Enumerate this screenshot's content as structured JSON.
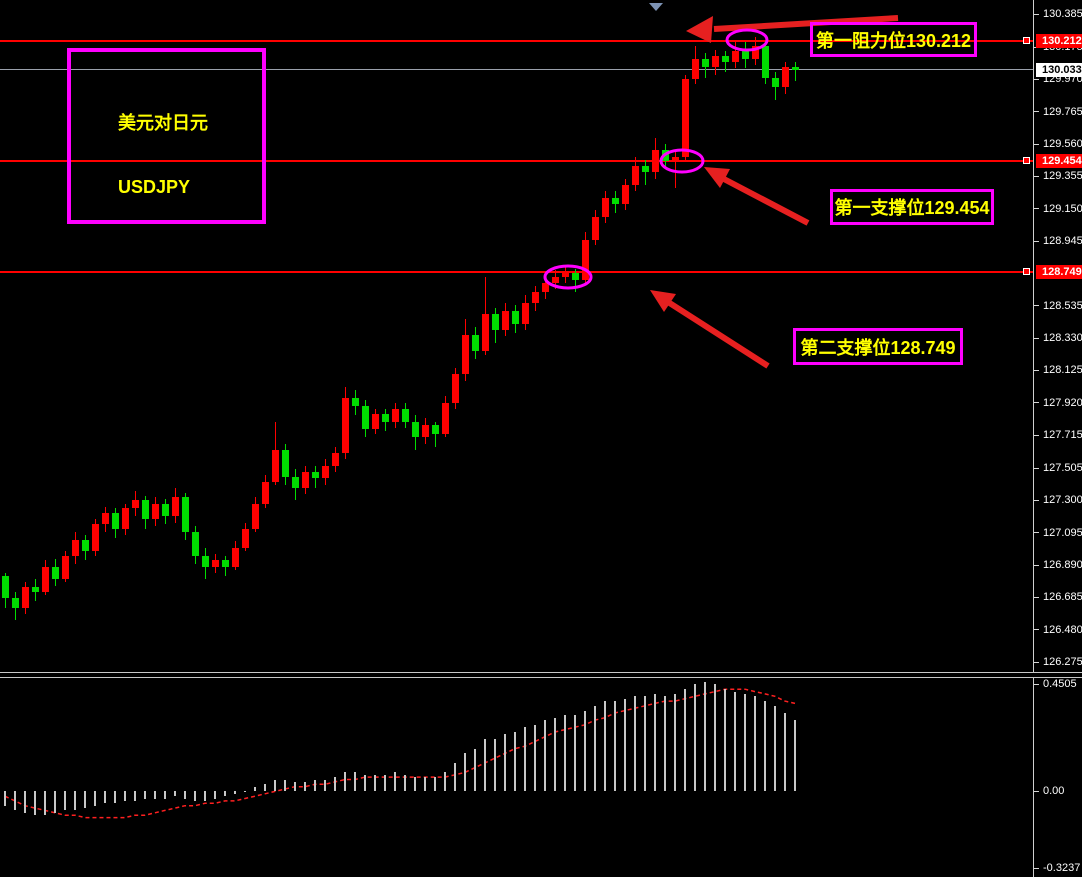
{
  "window": {
    "background": "#000000"
  },
  "instrument": {
    "title_line1": "美元对日元",
    "title_line2": "USDJPY"
  },
  "annotations": {
    "resistance1": {
      "label": "第一阻力位130.212"
    },
    "support1": {
      "label": "第一支撑位129.454"
    },
    "support2": {
      "label": "第二支撑位128.749"
    }
  },
  "colors": {
    "bull": "#ff0000",
    "bear": "#00dd00",
    "level_line": "#ff0000",
    "current_price_line": "#9aa0ac",
    "annotation_border": "#ff00ff",
    "annotation_text": "#ffff00",
    "axis_text": "#ffffff",
    "histogram_bar": "#c8c8c8",
    "signal_line": "#ff2020",
    "arrow": "#e62020",
    "marker_triangle": "#7d93b5"
  },
  "chart_data": {
    "type": "candlestick",
    "symbol": "USDJPY",
    "title": "美元对日元 USDJPY",
    "main": {
      "ymin": 126.212,
      "ymax": 130.474,
      "bull_color": "#ff0000",
      "bear_color": "#00dd00",
      "price_ticks": [
        "130.385",
        "130.175",
        "129.970",
        "129.765",
        "129.560",
        "129.355",
        "129.150",
        "128.945",
        "128.535",
        "128.330",
        "128.125",
        "127.920",
        "127.715",
        "127.505",
        "127.300",
        "127.095",
        "126.890",
        "126.685",
        "126.480",
        "126.275"
      ],
      "levels": [
        {
          "price": 130.212,
          "label": "130.212",
          "role": "resistance-1",
          "color": "#ff0000",
          "label_bg": "#ff0000",
          "label_fg": "#ffffff",
          "square": true
        },
        {
          "price": 129.454,
          "label": "129.454",
          "role": "support-1",
          "color": "#ff0000",
          "label_bg": "#ff0000",
          "label_fg": "#ffffff",
          "square": true
        },
        {
          "price": 128.749,
          "label": "128.749",
          "role": "support-2",
          "color": "#ff0000",
          "label_bg": "#ff0000",
          "label_fg": "#ffffff",
          "square": true
        },
        {
          "price": 130.033,
          "label": "130.033",
          "role": "current-price",
          "color": "#9aa0ac",
          "label_bg": "#ffffff",
          "label_fg": "#000000",
          "square": false,
          "thin": true
        }
      ],
      "current_price": 130.033,
      "candles_ohlc": [
        [
          126.82,
          126.84,
          126.62,
          126.68
        ],
        [
          126.68,
          126.72,
          126.54,
          126.62
        ],
        [
          126.62,
          126.78,
          126.58,
          126.75
        ],
        [
          126.75,
          126.8,
          126.66,
          126.72
        ],
        [
          126.72,
          126.92,
          126.7,
          126.88
        ],
        [
          126.88,
          126.93,
          126.76,
          126.8
        ],
        [
          126.8,
          126.98,
          126.78,
          126.95
        ],
        [
          126.95,
          127.1,
          126.9,
          127.05
        ],
        [
          127.05,
          127.08,
          126.92,
          126.98
        ],
        [
          126.98,
          127.18,
          126.95,
          127.15
        ],
        [
          127.15,
          127.26,
          127.1,
          127.22
        ],
        [
          127.22,
          127.25,
          127.06,
          127.12
        ],
        [
          127.12,
          127.28,
          127.08,
          127.25
        ],
        [
          127.25,
          127.36,
          127.2,
          127.3
        ],
        [
          127.3,
          127.33,
          127.12,
          127.18
        ],
        [
          127.18,
          127.32,
          127.14,
          127.28
        ],
        [
          127.28,
          127.31,
          127.15,
          127.2
        ],
        [
          127.2,
          127.38,
          127.16,
          127.32
        ],
        [
          127.32,
          127.35,
          127.05,
          127.1
        ],
        [
          127.1,
          127.14,
          126.9,
          126.95
        ],
        [
          126.95,
          127.0,
          126.8,
          126.88
        ],
        [
          126.88,
          126.96,
          126.84,
          126.92
        ],
        [
          126.92,
          126.95,
          126.82,
          126.88
        ],
        [
          126.88,
          127.04,
          126.86,
          127.0
        ],
        [
          127.0,
          127.16,
          126.98,
          127.12
        ],
        [
          127.12,
          127.32,
          127.1,
          127.28
        ],
        [
          127.28,
          127.46,
          127.25,
          127.42
        ],
        [
          127.42,
          127.8,
          127.4,
          127.62
        ],
        [
          127.62,
          127.66,
          127.4,
          127.45
        ],
        [
          127.45,
          127.5,
          127.3,
          127.38
        ],
        [
          127.38,
          127.52,
          127.34,
          127.48
        ],
        [
          127.48,
          127.52,
          127.38,
          127.44
        ],
        [
          127.44,
          127.56,
          127.4,
          127.52
        ],
        [
          127.52,
          127.64,
          127.48,
          127.6
        ],
        [
          127.6,
          128.02,
          127.56,
          127.95
        ],
        [
          127.95,
          128.0,
          127.84,
          127.9
        ],
        [
          127.9,
          127.94,
          127.7,
          127.75
        ],
        [
          127.75,
          127.88,
          127.72,
          127.85
        ],
        [
          127.85,
          127.88,
          127.74,
          127.8
        ],
        [
          127.8,
          127.92,
          127.76,
          127.88
        ],
        [
          127.88,
          127.92,
          127.76,
          127.8
        ],
        [
          127.8,
          127.84,
          127.62,
          127.7
        ],
        [
          127.7,
          127.82,
          127.66,
          127.78
        ],
        [
          127.78,
          127.8,
          127.64,
          127.72
        ],
        [
          127.72,
          127.96,
          127.7,
          127.92
        ],
        [
          127.92,
          128.14,
          127.88,
          128.1
        ],
        [
          128.1,
          128.45,
          128.06,
          128.35
        ],
        [
          128.35,
          128.4,
          128.2,
          128.25
        ],
        [
          128.25,
          128.72,
          128.22,
          128.48
        ],
        [
          128.48,
          128.52,
          128.3,
          128.38
        ],
        [
          128.38,
          128.55,
          128.34,
          128.5
        ],
        [
          128.5,
          128.54,
          128.36,
          128.42
        ],
        [
          128.42,
          128.6,
          128.38,
          128.55
        ],
        [
          128.55,
          128.66,
          128.5,
          128.62
        ],
        [
          128.62,
          128.72,
          128.58,
          128.68
        ],
        [
          128.68,
          128.76,
          128.64,
          128.72
        ],
        [
          128.72,
          128.78,
          128.68,
          128.74
        ],
        [
          128.74,
          128.77,
          128.62,
          128.7
        ],
        [
          128.7,
          129.0,
          128.68,
          128.95
        ],
        [
          128.95,
          129.14,
          128.92,
          129.1
        ],
        [
          129.1,
          129.26,
          129.06,
          129.22
        ],
        [
          129.22,
          129.26,
          129.12,
          129.18
        ],
        [
          129.18,
          129.34,
          129.14,
          129.3
        ],
        [
          129.3,
          129.48,
          129.26,
          129.42
        ],
        [
          129.42,
          129.46,
          129.3,
          129.38
        ],
        [
          129.38,
          129.6,
          129.34,
          129.52
        ],
        [
          129.52,
          129.56,
          129.4,
          129.45
        ],
        [
          129.45,
          129.52,
          129.28,
          129.48
        ],
        [
          129.48,
          130.0,
          129.45,
          129.97
        ],
        [
          129.97,
          130.18,
          129.94,
          130.1
        ],
        [
          130.1,
          130.14,
          129.98,
          130.05
        ],
        [
          130.05,
          130.16,
          130.0,
          130.12
        ],
        [
          130.12,
          130.15,
          130.02,
          130.08
        ],
        [
          130.08,
          130.22,
          130.04,
          130.15
        ],
        [
          130.15,
          130.21,
          130.04,
          130.1
        ],
        [
          130.1,
          130.24,
          130.06,
          130.18
        ],
        [
          130.18,
          130.2,
          129.94,
          129.98
        ],
        [
          129.98,
          130.02,
          129.84,
          129.92
        ],
        [
          129.92,
          130.08,
          129.88,
          130.05
        ],
        [
          130.05,
          130.08,
          129.96,
          130.033
        ]
      ]
    },
    "indicator": {
      "name": "OsMA",
      "ymin": -0.36,
      "ymax": 0.477,
      "ticks": [
        "0.4505",
        "0.00",
        "-0.3237"
      ],
      "histogram": [
        -0.06,
        -0.08,
        -0.09,
        -0.1,
        -0.1,
        -0.09,
        -0.08,
        -0.08,
        -0.07,
        -0.06,
        -0.05,
        -0.05,
        -0.04,
        -0.04,
        -0.03,
        -0.03,
        -0.03,
        -0.02,
        -0.03,
        -0.04,
        -0.04,
        -0.03,
        -0.02,
        -0.01,
        0.0,
        0.02,
        0.03,
        0.05,
        0.05,
        0.04,
        0.04,
        0.05,
        0.05,
        0.06,
        0.08,
        0.08,
        0.07,
        0.07,
        0.07,
        0.08,
        0.07,
        0.06,
        0.06,
        0.06,
        0.08,
        0.12,
        0.16,
        0.18,
        0.22,
        0.22,
        0.24,
        0.25,
        0.27,
        0.28,
        0.3,
        0.31,
        0.32,
        0.32,
        0.34,
        0.36,
        0.38,
        0.38,
        0.39,
        0.4,
        0.4,
        0.41,
        0.4,
        0.41,
        0.43,
        0.45,
        0.46,
        0.45,
        0.43,
        0.42,
        0.41,
        0.4,
        0.38,
        0.36,
        0.33,
        0.3
      ],
      "signal": [
        -0.02,
        -0.04,
        -0.06,
        -0.07,
        -0.08,
        -0.09,
        -0.1,
        -0.1,
        -0.11,
        -0.11,
        -0.11,
        -0.11,
        -0.11,
        -0.1,
        -0.1,
        -0.09,
        -0.08,
        -0.07,
        -0.06,
        -0.06,
        -0.05,
        -0.05,
        -0.04,
        -0.04,
        -0.03,
        -0.02,
        -0.01,
        0.0,
        0.01,
        0.02,
        0.02,
        0.03,
        0.03,
        0.04,
        0.05,
        0.05,
        0.06,
        0.06,
        0.06,
        0.06,
        0.06,
        0.06,
        0.06,
        0.06,
        0.06,
        0.07,
        0.08,
        0.1,
        0.12,
        0.14,
        0.16,
        0.18,
        0.19,
        0.21,
        0.23,
        0.25,
        0.26,
        0.27,
        0.28,
        0.3,
        0.31,
        0.33,
        0.34,
        0.35,
        0.36,
        0.37,
        0.38,
        0.38,
        0.39,
        0.4,
        0.41,
        0.42,
        0.43,
        0.43,
        0.43,
        0.42,
        0.41,
        0.4,
        0.38,
        0.37
      ]
    }
  }
}
